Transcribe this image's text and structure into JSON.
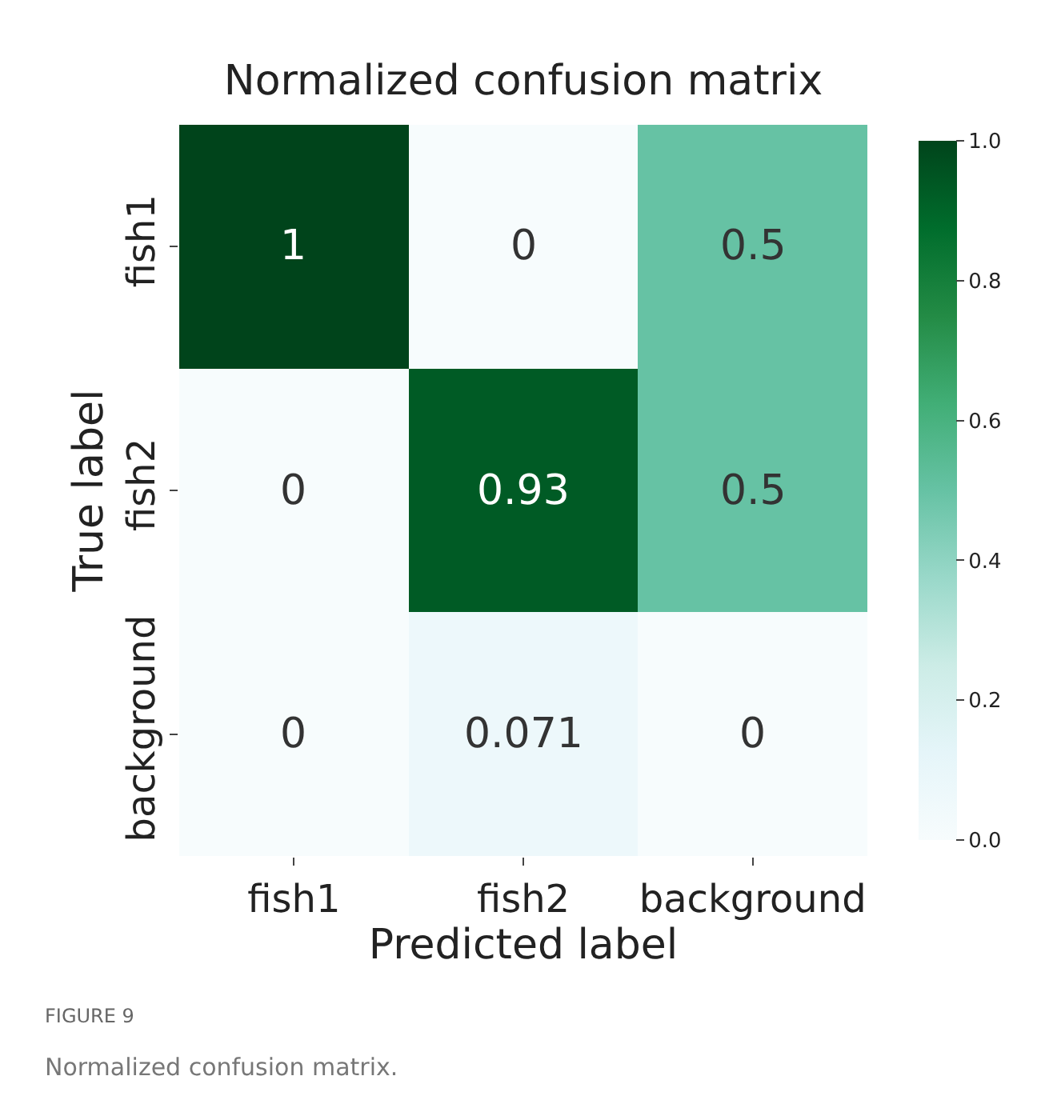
{
  "chart_data": {
    "type": "heatmap",
    "title": "Normalized confusion matrix",
    "xlabel": "Predicted label",
    "ylabel": "True label",
    "categories": [
      "fish1",
      "fish2",
      "background"
    ],
    "y_categories": [
      "fish1",
      "fish2",
      "background"
    ],
    "cells": [
      [
        1,
        0,
        0.5
      ],
      [
        0,
        0.93,
        0.5
      ],
      [
        0,
        0.071,
        0
      ]
    ],
    "clim": [
      0,
      1
    ],
    "cticks": [
      {
        "value": 0,
        "label": "0.0"
      },
      {
        "value": 0.2,
        "label": "0.2"
      },
      {
        "value": 0.4,
        "label": "0.4"
      },
      {
        "value": 0.6,
        "label": "0.6"
      },
      {
        "value": 0.8,
        "label": "0.8"
      },
      {
        "value": 1,
        "label": "1.0"
      }
    ],
    "data_labels": true,
    "annotations": [
      "FIGURE 9",
      "Normalized confusion matrix."
    ]
  }
}
